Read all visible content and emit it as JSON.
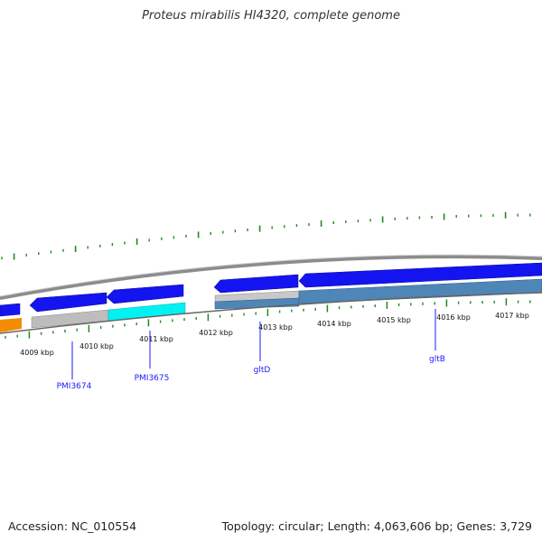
{
  "title": "Proteus mirabilis HI4320, complete genome",
  "footer": {
    "accession": "Accession: NC_010554",
    "summary": "Topology: circular; Length: 4,063,606 bp; Genes: 3,729"
  },
  "colors": {
    "backbone": "#8c8c8c",
    "cds_blue": "#1414f0",
    "gray_feature": "#bdbdbd",
    "cyan_feature": "#00f2f2",
    "steel_feature": "#4f86b8",
    "orange_feature": "#f28c00",
    "gc_ticks": "#1f8a1f",
    "label_blue": "#1a1aff"
  },
  "scale_labels": [
    "4009 kbp",
    "4010 kbp",
    "4011 kbp",
    "4012 kbp",
    "4013 kbp",
    "4014 kbp",
    "4015 kbp",
    "4016 kbp",
    "4017 kbp"
  ],
  "gene_labels": [
    "PMI3674",
    "PMI3675",
    "gltD",
    "gltB"
  ]
}
